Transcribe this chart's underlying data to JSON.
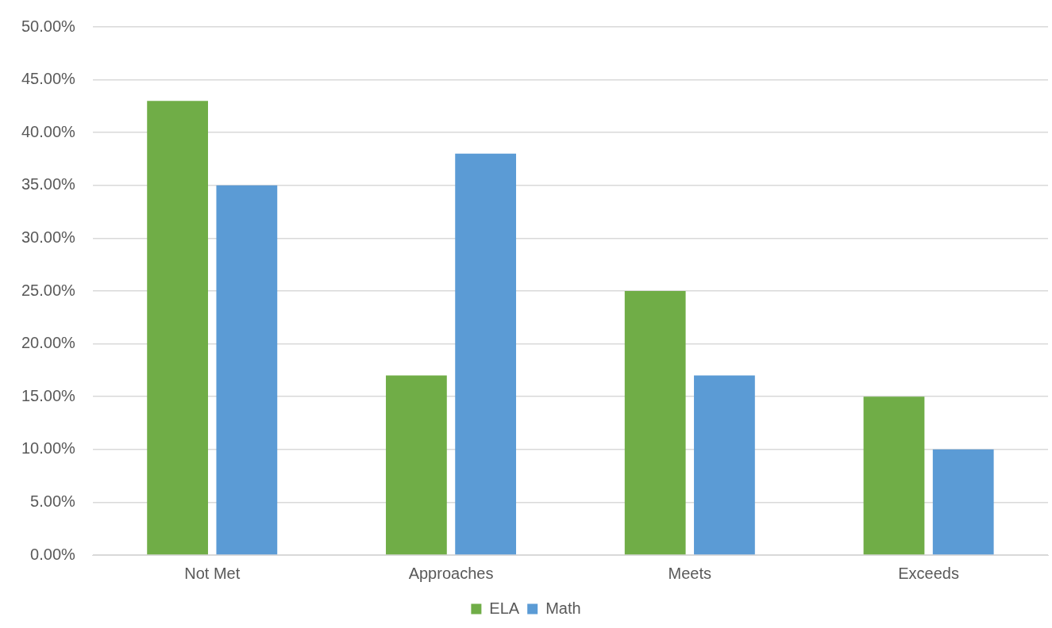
{
  "chart_data": {
    "type": "bar",
    "categories": [
      "Not Met",
      "Approaches",
      "Meets",
      "Exceeds"
    ],
    "series": [
      {
        "name": "ELA",
        "color": "#70ad47",
        "values": [
          43,
          17,
          25,
          15
        ]
      },
      {
        "name": "Math",
        "color": "#5b9bd5",
        "values": [
          35,
          38,
          17,
          10
        ]
      }
    ],
    "ylim": [
      0,
      50
    ],
    "yticks": [
      {
        "value": 0,
        "label": "0.00%"
      },
      {
        "value": 5,
        "label": "5.00%"
      },
      {
        "value": 10,
        "label": "10.00%"
      },
      {
        "value": 15,
        "label": "15.00%"
      },
      {
        "value": 20,
        "label": "20.00%"
      },
      {
        "value": 25,
        "label": "25.00%"
      },
      {
        "value": 30,
        "label": "30.00%"
      },
      {
        "value": 35,
        "label": "35.00%"
      },
      {
        "value": 40,
        "label": "40.00%"
      },
      {
        "value": 45,
        "label": "45.00%"
      },
      {
        "value": 50,
        "label": "50.00%"
      }
    ],
    "grid": "y",
    "legend": "bottom"
  }
}
